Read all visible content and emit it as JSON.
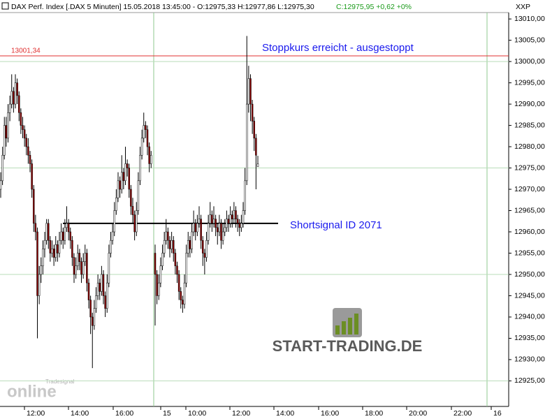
{
  "header": {
    "text": "DAX Perf. Index [.DAX  5 Minuten] 15.05.2018 13:45:00 - O:12975,33 H:12977,86 L:12975,30",
    "change": "C:12975,95 +0,62 +0%",
    "axis_name": "XXP"
  },
  "chart_data": {
    "type": "candlestick",
    "up_color": "#ffffff",
    "down_color": "#8b0000",
    "ylim": [
      12919,
      13011.5
    ],
    "yticks": [
      {
        "value": 13010,
        "label": "13010,00"
      },
      {
        "value": 13005,
        "label": "13005,00"
      },
      {
        "value": 13000,
        "label": "13000,00"
      },
      {
        "value": 12995,
        "label": "12995,00"
      },
      {
        "value": 12990,
        "label": "12990,00"
      },
      {
        "value": 12985,
        "label": "12985,00"
      },
      {
        "value": 12980,
        "label": "12980,00"
      },
      {
        "value": 12975,
        "label": "12975,00"
      },
      {
        "value": 12970,
        "label": "12970,00"
      },
      {
        "value": 12965,
        "label": "12965,00"
      },
      {
        "value": 12960,
        "label": "12960,00"
      },
      {
        "value": 12955,
        "label": "12955,00"
      },
      {
        "value": 12950,
        "label": "12950,00"
      },
      {
        "value": 12945,
        "label": "12945,00"
      },
      {
        "value": 12940,
        "label": "12940,00"
      },
      {
        "value": 12935,
        "label": "12935,00"
      },
      {
        "value": 12930,
        "label": "12930,00"
      },
      {
        "value": 12925,
        "label": "12925,00"
      }
    ],
    "grid_lines": [
      13000,
      12975,
      12950,
      12925
    ],
    "xticks": [
      "12:00",
      "14:00",
      "16:00",
      "15",
      "10:00",
      "12:00",
      "14:00",
      "16:00",
      "18:00",
      "20:00",
      "22:00",
      "16"
    ],
    "levels": [
      {
        "value": 13001.34,
        "label": "13001,34",
        "color": "#e03030"
      },
      {
        "value": 12962,
        "color": "#000000"
      }
    ],
    "annotations": [
      "Stoppkurs erreicht - ausgestoppt",
      "Shortsignal ID 2071"
    ],
    "sessions": [
      {
        "ohlc": [
          [
            12970,
            12974,
            12968,
            12972
          ],
          [
            12972,
            12980,
            12971,
            12978
          ],
          [
            12978,
            12987,
            12977,
            12985
          ],
          [
            12985,
            12987,
            12980,
            12982
          ],
          [
            12982,
            12990,
            12981,
            12988
          ],
          [
            12988,
            12992,
            12986,
            12990
          ],
          [
            12990,
            12997,
            12989,
            12993
          ],
          [
            12993,
            12994,
            12988,
            12990
          ],
          [
            12990,
            12997,
            12989,
            12995
          ],
          [
            12995,
            12996,
            12990,
            12992
          ],
          [
            12992,
            12993,
            12986,
            12988
          ],
          [
            12988,
            12989,
            12983,
            12985
          ],
          [
            12985,
            12987,
            12982,
            12984
          ],
          [
            12984,
            12985,
            12980,
            12982
          ],
          [
            12982,
            12983,
            12978,
            12980
          ],
          [
            12980,
            12982,
            12976,
            12978
          ],
          [
            12978,
            12979,
            12974,
            12976
          ],
          [
            12976,
            12977,
            12968,
            12970
          ],
          [
            12970,
            12971,
            12960,
            12962
          ],
          [
            12962,
            12964,
            12958,
            12960
          ],
          [
            12960,
            12961,
            12935,
            12945
          ],
          [
            12945,
            12952,
            12943,
            12950
          ],
          [
            12950,
            12954,
            12948,
            12952
          ],
          [
            12952,
            12958,
            12950,
            12956
          ],
          [
            12956,
            12960,
            12954,
            12958
          ],
          [
            12958,
            12963,
            12957,
            12962
          ],
          [
            12962,
            12963,
            12956,
            12958
          ],
          [
            12958,
            12959,
            12953,
            12955
          ],
          [
            12955,
            12958,
            12954,
            12956
          ],
          [
            12956,
            12957,
            12952,
            12954
          ],
          [
            12954,
            12959,
            12953,
            12957
          ],
          [
            12957,
            12958,
            12953,
            12955
          ],
          [
            12955,
            12960,
            12954,
            12958
          ],
          [
            12958,
            12962,
            12957,
            12960
          ],
          [
            12960,
            12961,
            12956,
            12958
          ],
          [
            12958,
            12963,
            12957,
            12961
          ],
          [
            12961,
            12966,
            12960,
            12962
          ],
          [
            12962,
            12963,
            12958,
            12960
          ],
          [
            12960,
            12961,
            12956,
            12958
          ],
          [
            12958,
            12959,
            12952,
            12954
          ],
          [
            12954,
            12955,
            12948,
            12950
          ],
          [
            12950,
            12954,
            12949,
            12952
          ],
          [
            12952,
            12957,
            12951,
            12955
          ],
          [
            12955,
            12956,
            12951,
            12953
          ],
          [
            12953,
            12954,
            12948,
            12950
          ],
          [
            12950,
            12955,
            12949,
            12953
          ],
          [
            12953,
            12957,
            12952,
            12955
          ],
          [
            12955,
            12956,
            12946,
            12948
          ],
          [
            12948,
            12949,
            12942,
            12944
          ],
          [
            12944,
            12945,
            12936,
            12940
          ],
          [
            12940,
            12941,
            12928,
            12938
          ],
          [
            12938,
            12944,
            12937,
            12942
          ],
          [
            12942,
            12947,
            12941,
            12945
          ],
          [
            12945,
            12950,
            12944,
            12948
          ],
          [
            12948,
            12949,
            12944,
            12946
          ],
          [
            12946,
            12952,
            12945,
            12950
          ],
          [
            12950,
            12951,
            12943,
            12945
          ],
          [
            12945,
            12946,
            12940,
            12942
          ],
          [
            12942,
            12950,
            12941,
            12948
          ],
          [
            12948,
            12957,
            12947,
            12955
          ],
          [
            12955,
            12960,
            12954,
            12958
          ],
          [
            12958,
            12962,
            12957,
            12960
          ],
          [
            12960,
            12967,
            12959,
            12965
          ],
          [
            12965,
            12970,
            12964,
            12968
          ],
          [
            12968,
            12974,
            12967,
            12972
          ],
          [
            12972,
            12973,
            12968,
            12970
          ],
          [
            12970,
            12978,
            12969,
            12974
          ],
          [
            12974,
            12975,
            12970,
            12972
          ],
          [
            12972,
            12980,
            12971,
            12976
          ],
          [
            12976,
            12977,
            12973,
            12975
          ],
          [
            12975,
            12976,
            12968,
            12970
          ],
          [
            12970,
            12971,
            12964,
            12966
          ],
          [
            12966,
            12968,
            12962,
            12964
          ],
          [
            12964,
            12965,
            12958,
            12960
          ],
          [
            12960,
            12967,
            12959,
            12965
          ],
          [
            12965,
            12974,
            12964,
            12972
          ],
          [
            12972,
            12980,
            12971,
            12978
          ],
          [
            12978,
            12984,
            12977,
            12982
          ],
          [
            12982,
            12988,
            12981,
            12985
          ],
          [
            12985,
            12986,
            12982,
            12984
          ],
          [
            12984,
            12985,
            12978,
            12980
          ],
          [
            12980,
            12981,
            12974,
            12976
          ],
          [
            12976,
            12979,
            12975,
            12978
          ]
        ]
      },
      {
        "ohlc": [
          [
            12955,
            12957,
            12938,
            12950
          ],
          [
            12950,
            12951,
            12943,
            12945
          ],
          [
            12945,
            12950,
            12944,
            12948
          ],
          [
            12948,
            12954,
            12947,
            12952
          ],
          [
            12952,
            12957,
            12951,
            12955
          ],
          [
            12955,
            12960,
            12954,
            12958
          ],
          [
            12958,
            12963,
            12957,
            12960
          ],
          [
            12960,
            12961,
            12956,
            12958
          ],
          [
            12958,
            12959,
            12954,
            12956
          ],
          [
            12956,
            12960,
            12955,
            12958
          ],
          [
            12958,
            12959,
            12953,
            12955
          ],
          [
            12955,
            12956,
            12950,
            12952
          ],
          [
            12952,
            12953,
            12948,
            12950
          ],
          [
            12950,
            12951,
            12944,
            12946
          ],
          [
            12946,
            12947,
            12942,
            12944
          ],
          [
            12944,
            12945,
            12941,
            12943
          ],
          [
            12943,
            12950,
            12942,
            12948
          ],
          [
            12948,
            12957,
            12947,
            12955
          ],
          [
            12955,
            12960,
            12954,
            12958
          ],
          [
            12958,
            12959,
            12954,
            12956
          ],
          [
            12956,
            12962,
            12955,
            12960
          ],
          [
            12960,
            12965,
            12959,
            12962
          ],
          [
            12962,
            12963,
            12958,
            12960
          ],
          [
            12960,
            12964,
            12959,
            12962
          ],
          [
            12962,
            12966,
            12961,
            12963
          ],
          [
            12963,
            12964,
            12956,
            12958
          ],
          [
            12958,
            12959,
            12952,
            12955
          ],
          [
            12955,
            12956,
            12950,
            12954
          ],
          [
            12954,
            12960,
            12953,
            12958
          ],
          [
            12958,
            12964,
            12957,
            12962
          ],
          [
            12962,
            12967,
            12961,
            12964
          ],
          [
            12964,
            12965,
            12960,
            12962
          ],
          [
            12962,
            12966,
            12961,
            12963
          ],
          [
            12963,
            12964,
            12959,
            12961
          ],
          [
            12961,
            12962,
            12957,
            12960
          ],
          [
            12960,
            12964,
            12959,
            12962
          ],
          [
            12962,
            12963,
            12956,
            12958
          ],
          [
            12958,
            12962,
            12957,
            12960
          ],
          [
            12960,
            12963,
            12959,
            12961
          ],
          [
            12961,
            12965,
            12960,
            12963
          ],
          [
            12963,
            12964,
            12960,
            12962
          ],
          [
            12962,
            12966,
            12961,
            12964
          ],
          [
            12964,
            12965,
            12961,
            12963
          ],
          [
            12963,
            12967,
            12962,
            12965
          ],
          [
            12965,
            12966,
            12961,
            12963
          ],
          [
            12963,
            12964,
            12960,
            12962
          ],
          [
            12962,
            12963,
            12959,
            12961
          ],
          [
            12961,
            12964,
            12960,
            12962
          ],
          [
            12962,
            12967,
            12961,
            12965
          ],
          [
            12965,
            12975,
            12964,
            12972
          ],
          [
            12972,
            13006,
            12971,
            12990
          ],
          [
            12990,
            12999,
            12988,
            12996
          ],
          [
            12996,
            12997,
            12986,
            12990
          ],
          [
            12990,
            12991,
            12983,
            12986
          ],
          [
            12986,
            12987,
            12979,
            12982
          ],
          [
            12982,
            12983,
            12970,
            12978
          ],
          [
            12975.33,
            12977.86,
            12975.3,
            12975.95
          ]
        ]
      }
    ]
  },
  "watermark": {
    "brand": "START-TRADING.DE",
    "logo": "online",
    "provider": "Tradesignal"
  }
}
